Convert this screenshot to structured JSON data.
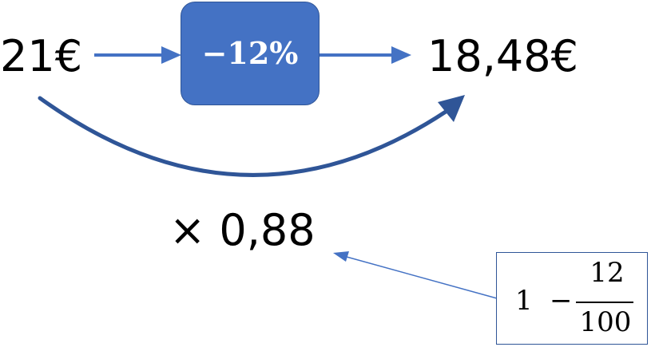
{
  "diagram": {
    "start_value": "21€",
    "percent_change": "−12%",
    "end_value": "18,48€",
    "multiplier": "× 0,88",
    "formula": {
      "whole": "1",
      "operator": "−",
      "numerator": "12",
      "denominator": "100"
    }
  },
  "colors": {
    "box_fill": "#4472c4",
    "box_border": "#2f5597",
    "arrow_light": "#4472c4",
    "arrow_dark": "#2f5597"
  }
}
